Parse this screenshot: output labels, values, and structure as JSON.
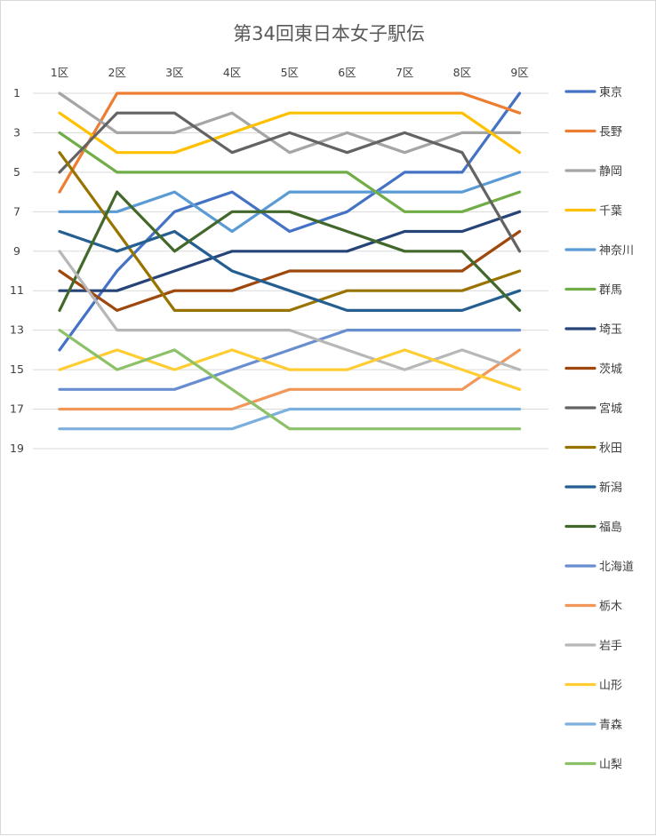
{
  "chart_data": {
    "type": "line",
    "title": "第34回東日本女子駅伝",
    "categories": [
      "1区",
      "2区",
      "3区",
      "4区",
      "5区",
      "6区",
      "7区",
      "8区",
      "9区"
    ],
    "y_axis": {
      "reversed": true,
      "range": [
        1,
        19
      ],
      "ticks": [
        1,
        3,
        5,
        7,
        9,
        11,
        13,
        15,
        17,
        19
      ]
    },
    "grid": true,
    "legend_position": "right",
    "series": [
      {
        "name": "東京",
        "color": "#4472C4",
        "values": [
          14,
          10,
          7,
          6,
          8,
          7,
          5,
          5,
          1
        ]
      },
      {
        "name": "長野",
        "color": "#ED7D31",
        "values": [
          6,
          1,
          1,
          1,
          1,
          1,
          1,
          1,
          2
        ]
      },
      {
        "name": "静岡",
        "color": "#A5A5A5",
        "values": [
          1,
          3,
          3,
          2,
          4,
          3,
          4,
          3,
          3
        ]
      },
      {
        "name": "千葉",
        "color": "#FFC000",
        "values": [
          2,
          4,
          4,
          3,
          2,
          2,
          2,
          2,
          4
        ]
      },
      {
        "name": "神奈川",
        "color": "#5B9BD5",
        "values": [
          7,
          7,
          6,
          8,
          6,
          6,
          6,
          6,
          5
        ]
      },
      {
        "name": "群馬",
        "color": "#70AD47",
        "values": [
          3,
          5,
          5,
          5,
          5,
          5,
          7,
          7,
          6
        ]
      },
      {
        "name": "埼玉",
        "color": "#264478",
        "values": [
          11,
          11,
          10,
          9,
          9,
          9,
          8,
          8,
          7
        ]
      },
      {
        "name": "茨城",
        "color": "#9E480E",
        "values": [
          10,
          12,
          11,
          11,
          10,
          10,
          10,
          10,
          8
        ]
      },
      {
        "name": "宮城",
        "color": "#636363",
        "values": [
          5,
          2,
          2,
          4,
          3,
          4,
          3,
          4,
          9
        ]
      },
      {
        "name": "秋田",
        "color": "#997300",
        "values": [
          4,
          8,
          12,
          12,
          12,
          11,
          11,
          11,
          10
        ]
      },
      {
        "name": "新潟",
        "color": "#255E91",
        "values": [
          8,
          9,
          8,
          10,
          11,
          12,
          12,
          12,
          11
        ]
      },
      {
        "name": "福島",
        "color": "#43682B",
        "values": [
          12,
          6,
          9,
          7,
          7,
          8,
          9,
          9,
          12
        ]
      },
      {
        "name": "北海道",
        "color": "#698ED0",
        "values": [
          16,
          16,
          16,
          15,
          14,
          13,
          13,
          13,
          13
        ]
      },
      {
        "name": "栃木",
        "color": "#F1975A",
        "values": [
          17,
          17,
          17,
          17,
          16,
          16,
          16,
          16,
          14
        ]
      },
      {
        "name": "岩手",
        "color": "#B7B7B7",
        "values": [
          9,
          13,
          13,
          13,
          13,
          14,
          15,
          14,
          15
        ]
      },
      {
        "name": "山形",
        "color": "#FFCD33",
        "values": [
          15,
          14,
          15,
          14,
          15,
          15,
          14,
          15,
          16
        ]
      },
      {
        "name": "青森",
        "color": "#7CAFDD",
        "values": [
          18,
          18,
          18,
          18,
          17,
          17,
          17,
          17,
          17
        ]
      },
      {
        "name": "山梨",
        "color": "#8CC168",
        "values": [
          13,
          15,
          14,
          16,
          18,
          18,
          18,
          18,
          18
        ]
      }
    ]
  }
}
